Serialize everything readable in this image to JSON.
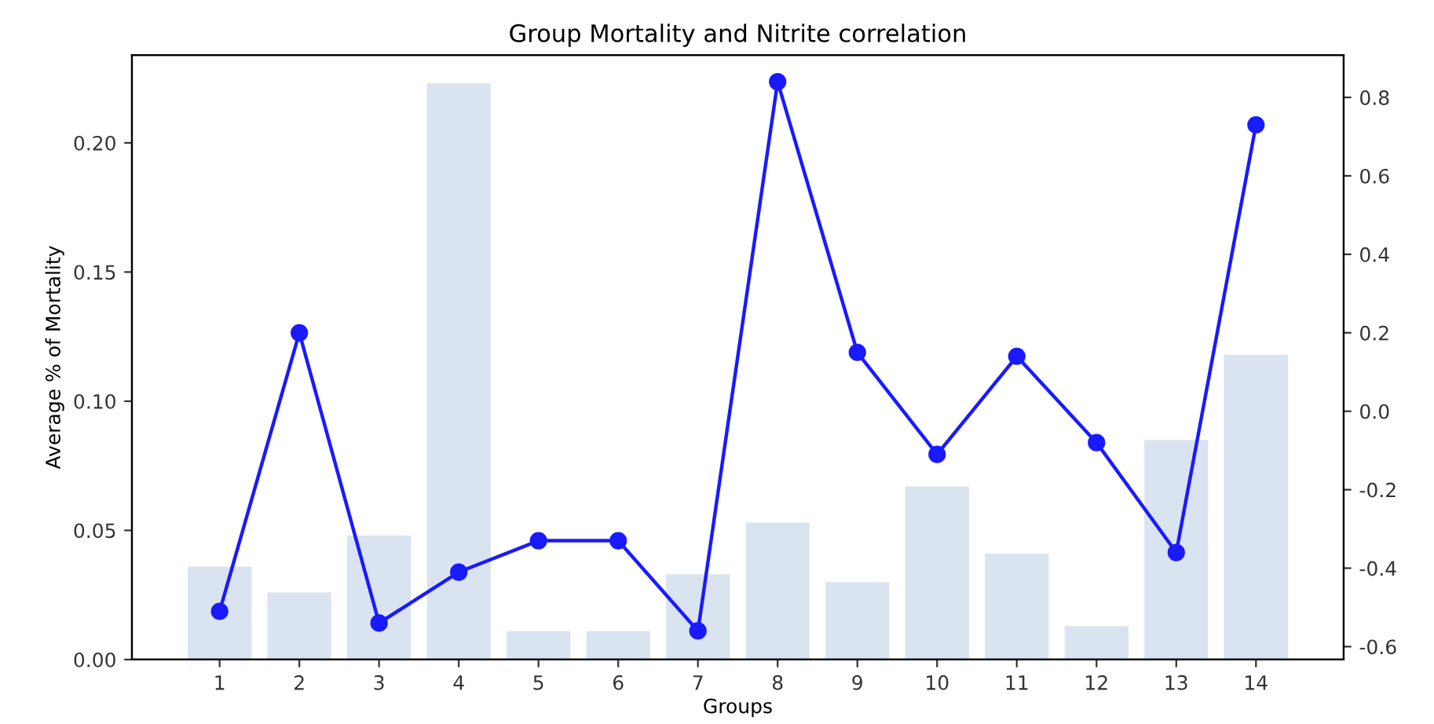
{
  "chart_data": {
    "type": "bar",
    "title": "Group Mortality and Nitrite correlation",
    "xlabel": "Groups",
    "ylabel": "Average % of Mortality",
    "categories": [
      "1",
      "2",
      "3",
      "4",
      "5",
      "6",
      "7",
      "8",
      "9",
      "10",
      "11",
      "12",
      "13",
      "14"
    ],
    "series": [
      {
        "color": "#dae3f0",
        "values": [
          0.036,
          0.026,
          0.048,
          0.223,
          0.011,
          0.011,
          0.033,
          0.053,
          0.03,
          0.067,
          0.041,
          0.013,
          0.085,
          0.118
        ]
      },
      {
        "type": "line",
        "axis": "y2",
        "color": "#1a1aff",
        "marker": "circle",
        "line_style": "solid",
        "values": [
          -0.51,
          0.2,
          -0.54,
          -0.41,
          -0.33,
          -0.33,
          -0.56,
          0.84,
          0.15,
          -0.11,
          0.14,
          -0.08,
          -0.36,
          0.73
        ]
      }
    ],
    "ylim": [
      0,
      0.234
    ],
    "yticks": [
      {
        "value": 0,
        "label": "0.00"
      },
      {
        "value": 0.05,
        "label": "0.05"
      },
      {
        "value": 0.1,
        "label": "0.10"
      },
      {
        "value": 0.15,
        "label": "0.15"
      },
      {
        "value": 0.2,
        "label": "0.20"
      }
    ],
    "y2lim": [
      -0.633,
      0.908
    ],
    "y2ticks": [
      -0.6,
      -0.4,
      -0.2,
      {
        "value": 0,
        "label": "0.0"
      },
      0.2,
      0.4,
      0.6,
      0.8
    ],
    "grid": false
  }
}
